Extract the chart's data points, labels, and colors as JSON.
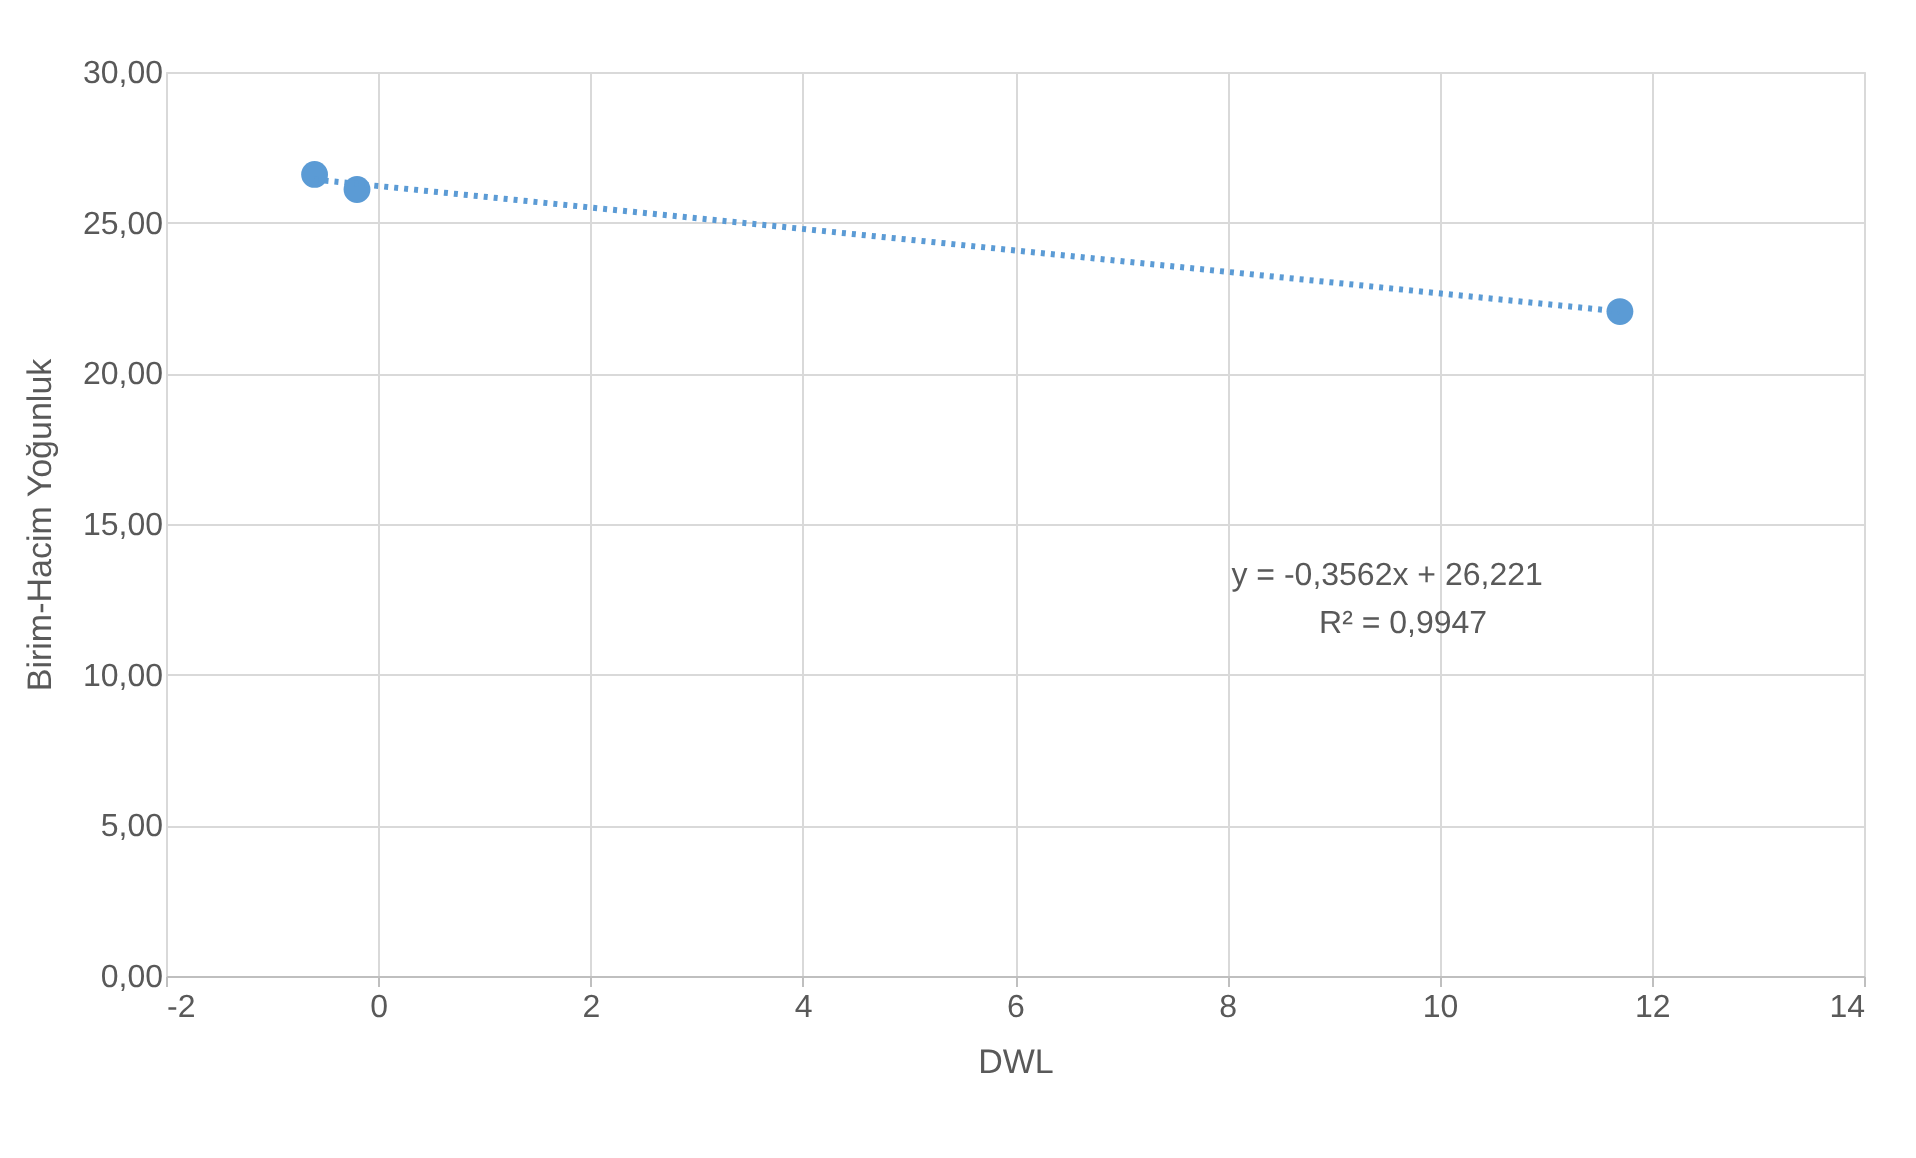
{
  "chart_data": {
    "type": "scatter",
    "xlabel": "DWL",
    "ylabel": "Birim-Hacim Yoğunluk",
    "series": [
      {
        "color": "#5b9bd5",
        "x": [
          -0.6,
          -0.2,
          11.7
        ],
        "values": [
          26.6,
          26.1,
          22.05
        ],
        "marker": "circle"
      },
      {
        "type": "line",
        "color": "#5b9bd5",
        "x": [
          -0.6,
          11.7
        ],
        "values": [
          26.43,
          22.05
        ],
        "line_style": "dotted",
        "marker": "none"
      }
    ],
    "xlim": [
      -2,
      14
    ],
    "xticks": [
      -2,
      0,
      2,
      4,
      6,
      8,
      10,
      12,
      14
    ],
    "ylim": [
      0,
      30
    ],
    "yticks": [
      {
        "value": 0,
        "label": "0,00"
      },
      {
        "value": 5,
        "label": "5,00"
      },
      {
        "value": 10,
        "label": "10,00"
      },
      {
        "value": 15,
        "label": "15,00"
      },
      {
        "value": 20,
        "label": "20,00"
      },
      {
        "value": 25,
        "label": "25,00"
      },
      {
        "value": 30,
        "label": "30,00"
      }
    ],
    "grid": true,
    "annotations": [
      "y = -0,3562x + 26,221",
      "R² = 0,9947"
    ]
  }
}
